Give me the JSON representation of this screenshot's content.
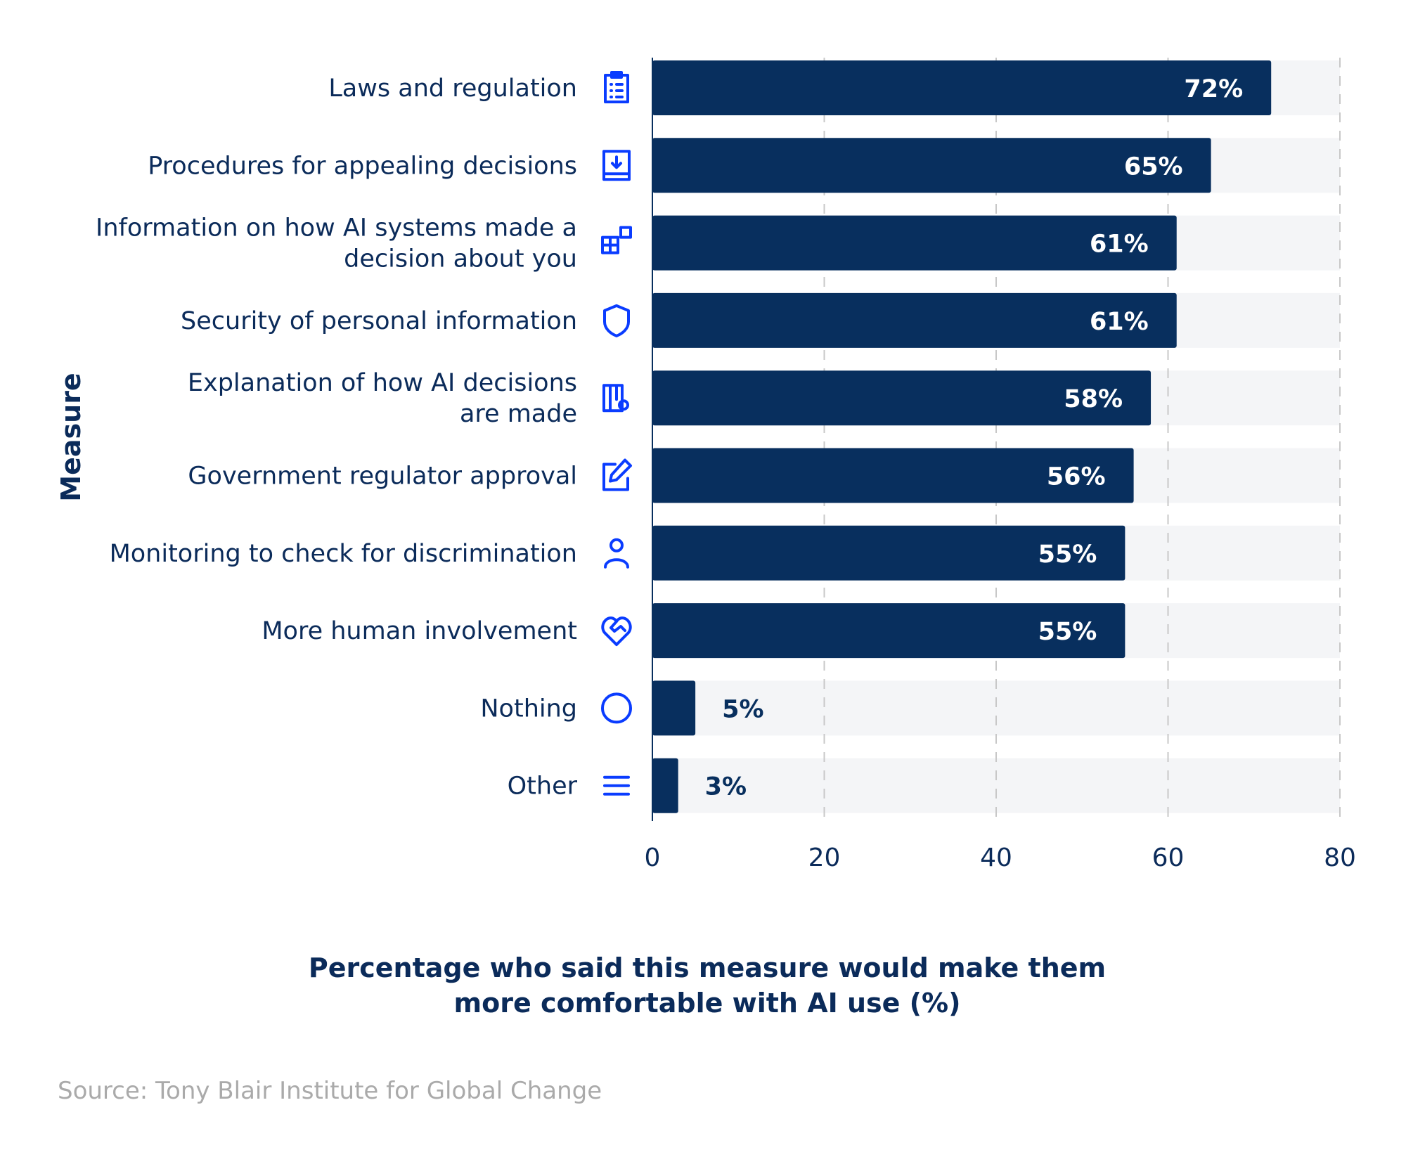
{
  "chart_data": {
    "type": "bar",
    "orientation": "horizontal",
    "categories": [
      "Laws and regulation",
      "Procedures for appealing decisions",
      "Information on how AI systems made a decision about you",
      "Security of personal information",
      "Explanation of how AI decisions are made",
      "Government regulator approval",
      "Monitoring to check for discrimination",
      "More human involvement",
      "Nothing",
      "Other"
    ],
    "category_lines": [
      [
        "Laws and regulation"
      ],
      [
        "Procedures for appealing decisions"
      ],
      [
        "Information on how AI systems made a",
        "decision about you"
      ],
      [
        "Security of personal information"
      ],
      [
        "Explanation of how AI decisions",
        "are made"
      ],
      [
        "Government regulator approval"
      ],
      [
        "Monitoring to check for discrimination"
      ],
      [
        "More human involvement"
      ],
      [
        "Nothing"
      ],
      [
        "Other"
      ]
    ],
    "icons": [
      "clipboard-list-icon",
      "download-box-icon",
      "blocks-icon",
      "shield-icon",
      "columns-gear-icon",
      "pencil-square-icon",
      "user-icon",
      "heart-handshake-icon",
      "circle-icon",
      "menu-lines-icon"
    ],
    "values": [
      72,
      65,
      61,
      61,
      58,
      56,
      55,
      55,
      5,
      3
    ],
    "data_labels": [
      "72%",
      "65%",
      "61%",
      "61%",
      "58%",
      "56%",
      "55%",
      "55%",
      "5%",
      "3%"
    ],
    "xlim": [
      0,
      80
    ],
    "xticks": [
      0,
      20,
      40,
      60,
      80
    ],
    "xtick_labels": [
      "0",
      "20",
      "40",
      "60",
      "80"
    ],
    "xlabel": "Percentage who said this measure would make them more comfortable with AI use (%)",
    "xlabel_lines": [
      "Percentage who said this measure would make them",
      "more comfortable with AI use (%)"
    ],
    "ylabel": "Measure",
    "grid": "vertical dashed",
    "colors": {
      "bar": "#082f5e",
      "track": "#f4f5f7",
      "icon": "#0a3cff",
      "text": "#0b2b5a",
      "grid": "#c8c8c8"
    }
  },
  "source": "Source: Tony Blair Institute for Global Change"
}
